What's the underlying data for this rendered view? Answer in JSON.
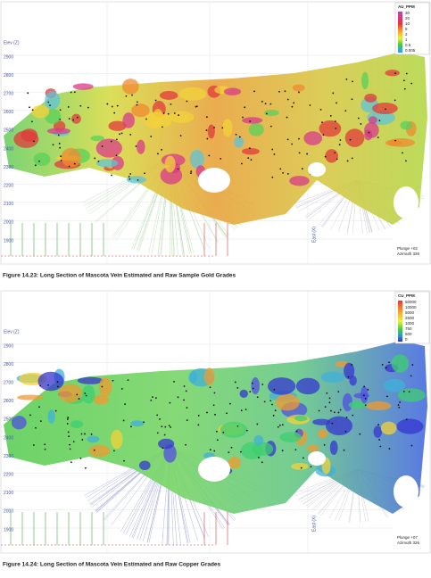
{
  "figures": [
    {
      "legend": {
        "title": "AU_PPM",
        "labels": [
          "30",
          "20",
          "10",
          "5",
          "2",
          "1",
          "0.5",
          "0.005"
        ]
      },
      "elevation_label": "Elev (Z)",
      "elevation_ticks": [
        "2900",
        "2800",
        "2700",
        "2600",
        "2500",
        "2400",
        "2300",
        "2200",
        "2100",
        "2000",
        "1900"
      ],
      "east_label": "East (X)",
      "view": [
        "Plunge +02",
        "Azimuth 326"
      ],
      "caption": "Figure 14.23: Long Section of Mascota Vein Estimated and Raw Sample Gold Grades"
    },
    {
      "legend": {
        "title": "CU_PPM",
        "labels": [
          "50000",
          "10000",
          "5000",
          "2500",
          "1000",
          "750",
          "500",
          "0"
        ]
      },
      "elevation_label": "Elev (Z)",
      "elevation_ticks": [
        "2900",
        "2800",
        "2700",
        "2600",
        "2500",
        "2400",
        "2300",
        "2200",
        "2100",
        "2000",
        "1900"
      ],
      "east_label": "East (X)",
      "view": [
        "Plunge +07",
        "Azimuth 326"
      ],
      "caption": "Figure 14.24: Long Section of Mascota Vein Estimated and Raw Copper Grades"
    }
  ]
}
